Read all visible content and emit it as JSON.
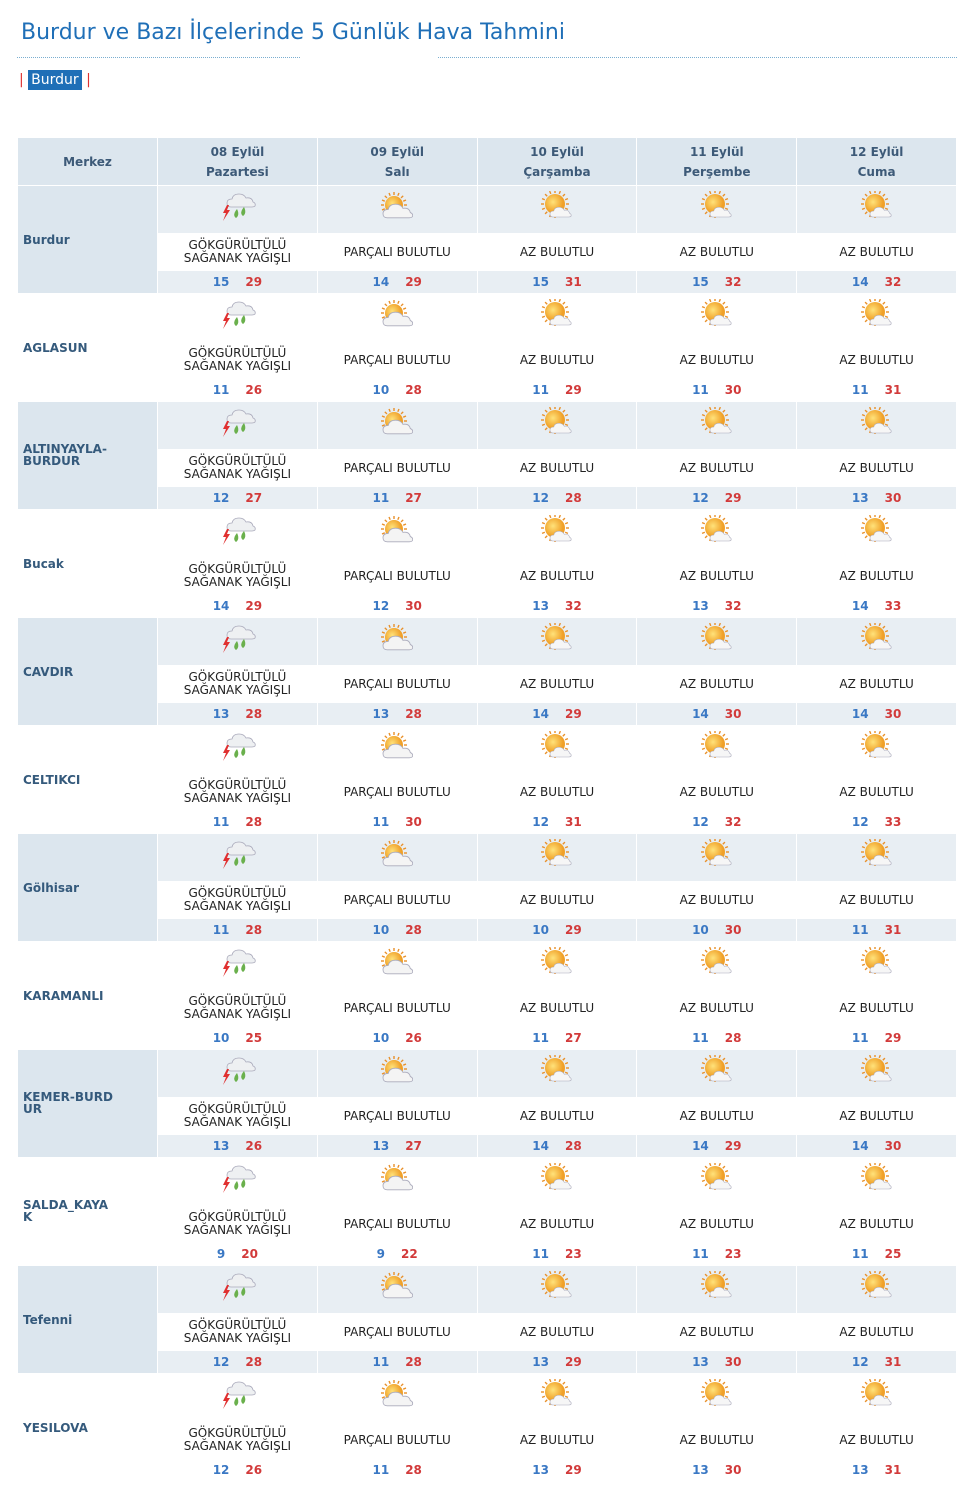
{
  "header": {
    "title": "Burdur ve Bazı İlçelerinde 5 Günlük Hava Tahmini",
    "tabs": [
      "Burdur"
    ]
  },
  "table": {
    "corner": "Merkez",
    "days": [
      {
        "date": "08 Eylül",
        "weekday": "Pazartesi"
      },
      {
        "date": "09 Eylül",
        "weekday": "Salı"
      },
      {
        "date": "10 Eylül",
        "weekday": "Çarşamba"
      },
      {
        "date": "11 Eylül",
        "weekday": "Perşembe"
      },
      {
        "date": "12 Eylül",
        "weekday": "Cuma"
      }
    ],
    "rows": [
      {
        "city": "Burdur",
        "days": [
          {
            "desc": "GÖKGÜRÜLTÜLÜ SAĞANAK YAĞIŞLI",
            "min": 15,
            "max": 29
          },
          {
            "desc": "PARÇALI BULUTLU",
            "min": 14,
            "max": 29
          },
          {
            "desc": "AZ BULUTLU",
            "min": 15,
            "max": 31
          },
          {
            "desc": "AZ BULUTLU",
            "min": 15,
            "max": 32
          },
          {
            "desc": "AZ BULUTLU",
            "min": 14,
            "max": 32
          }
        ]
      },
      {
        "city": "AGLASUN",
        "days": [
          {
            "desc": "GÖKGÜRÜLTÜLÜ SAĞANAK YAĞIŞLI",
            "min": 11,
            "max": 26
          },
          {
            "desc": "PARÇALI BULUTLU",
            "min": 10,
            "max": 28
          },
          {
            "desc": "AZ BULUTLU",
            "min": 11,
            "max": 29
          },
          {
            "desc": "AZ BULUTLU",
            "min": 11,
            "max": 30
          },
          {
            "desc": "AZ BULUTLU",
            "min": 11,
            "max": 31
          }
        ]
      },
      {
        "city": "ALTINYAYLA-BURDUR",
        "days": [
          {
            "desc": "GÖKGÜRÜLTÜLÜ SAĞANAK YAĞIŞLI",
            "min": 12,
            "max": 27
          },
          {
            "desc": "PARÇALI BULUTLU",
            "min": 11,
            "max": 27
          },
          {
            "desc": "AZ BULUTLU",
            "min": 12,
            "max": 28
          },
          {
            "desc": "AZ BULUTLU",
            "min": 12,
            "max": 29
          },
          {
            "desc": "AZ BULUTLU",
            "min": 13,
            "max": 30
          }
        ]
      },
      {
        "city": "Bucak",
        "days": [
          {
            "desc": "GÖKGÜRÜLTÜLÜ SAĞANAK YAĞIŞLI",
            "min": 14,
            "max": 29
          },
          {
            "desc": "PARÇALI BULUTLU",
            "min": 12,
            "max": 30
          },
          {
            "desc": "AZ BULUTLU",
            "min": 13,
            "max": 32
          },
          {
            "desc": "AZ BULUTLU",
            "min": 13,
            "max": 32
          },
          {
            "desc": "AZ BULUTLU",
            "min": 14,
            "max": 33
          }
        ]
      },
      {
        "city": "CAVDIR",
        "days": [
          {
            "desc": "GÖKGÜRÜLTÜLÜ SAĞANAK YAĞIŞLI",
            "min": 13,
            "max": 28
          },
          {
            "desc": "PARÇALI BULUTLU",
            "min": 13,
            "max": 28
          },
          {
            "desc": "AZ BULUTLU",
            "min": 14,
            "max": 29
          },
          {
            "desc": "AZ BULUTLU",
            "min": 14,
            "max": 30
          },
          {
            "desc": "AZ BULUTLU",
            "min": 14,
            "max": 30
          }
        ]
      },
      {
        "city": "CELTIKCI",
        "days": [
          {
            "desc": "GÖKGÜRÜLTÜLÜ SAĞANAK YAĞIŞLI",
            "min": 11,
            "max": 28
          },
          {
            "desc": "PARÇALI BULUTLU",
            "min": 11,
            "max": 30
          },
          {
            "desc": "AZ BULUTLU",
            "min": 12,
            "max": 31
          },
          {
            "desc": "AZ BULUTLU",
            "min": 12,
            "max": 32
          },
          {
            "desc": "AZ BULUTLU",
            "min": 12,
            "max": 33
          }
        ]
      },
      {
        "city": "Gölhisar",
        "days": [
          {
            "desc": "GÖKGÜRÜLTÜLÜ SAĞANAK YAĞIŞLI",
            "min": 11,
            "max": 28
          },
          {
            "desc": "PARÇALI BULUTLU",
            "min": 10,
            "max": 28
          },
          {
            "desc": "AZ BULUTLU",
            "min": 10,
            "max": 29
          },
          {
            "desc": "AZ BULUTLU",
            "min": 10,
            "max": 30
          },
          {
            "desc": "AZ BULUTLU",
            "min": 11,
            "max": 31
          }
        ]
      },
      {
        "city": "KARAMANLI",
        "days": [
          {
            "desc": "GÖKGÜRÜLTÜLÜ SAĞANAK YAĞIŞLI",
            "min": 10,
            "max": 25
          },
          {
            "desc": "PARÇALI BULUTLU",
            "min": 10,
            "max": 26
          },
          {
            "desc": "AZ BULUTLU",
            "min": 11,
            "max": 27
          },
          {
            "desc": "AZ BULUTLU",
            "min": 11,
            "max": 28
          },
          {
            "desc": "AZ BULUTLU",
            "min": 11,
            "max": 29
          }
        ]
      },
      {
        "city": "KEMER-BURDUR",
        "days": [
          {
            "desc": "GÖKGÜRÜLTÜLÜ SAĞANAK YAĞIŞLI",
            "min": 13,
            "max": 26
          },
          {
            "desc": "PARÇALI BULUTLU",
            "min": 13,
            "max": 27
          },
          {
            "desc": "AZ BULUTLU",
            "min": 14,
            "max": 28
          },
          {
            "desc": "AZ BULUTLU",
            "min": 14,
            "max": 29
          },
          {
            "desc": "AZ BULUTLU",
            "min": 14,
            "max": 30
          }
        ]
      },
      {
        "city": "SALDA_KAYAK",
        "days": [
          {
            "desc": "GÖKGÜRÜLTÜLÜ SAĞANAK YAĞIŞLI",
            "min": 9,
            "max": 20
          },
          {
            "desc": "PARÇALI BULUTLU",
            "min": 9,
            "max": 22
          },
          {
            "desc": "AZ BULUTLU",
            "min": 11,
            "max": 23
          },
          {
            "desc": "AZ BULUTLU",
            "min": 11,
            "max": 23
          },
          {
            "desc": "AZ BULUTLU",
            "min": 11,
            "max": 25
          }
        ]
      },
      {
        "city": "Tefenni",
        "days": [
          {
            "desc": "GÖKGÜRÜLTÜLÜ SAĞANAK YAĞIŞLI",
            "min": 12,
            "max": 28
          },
          {
            "desc": "PARÇALI BULUTLU",
            "min": 11,
            "max": 28
          },
          {
            "desc": "AZ BULUTLU",
            "min": 13,
            "max": 29
          },
          {
            "desc": "AZ BULUTLU",
            "min": 13,
            "max": 30
          },
          {
            "desc": "AZ BULUTLU",
            "min": 12,
            "max": 31
          }
        ]
      },
      {
        "city": "YESILOVA",
        "days": [
          {
            "desc": "GÖKGÜRÜLTÜLÜ SAĞANAK YAĞIŞLI",
            "min": 12,
            "max": 26
          },
          {
            "desc": "PARÇALI BULUTLU",
            "min": 11,
            "max": 28
          },
          {
            "desc": "AZ BULUTLU",
            "min": 13,
            "max": 29
          },
          {
            "desc": "AZ BULUTLU",
            "min": 13,
            "max": 30
          },
          {
            "desc": "AZ BULUTLU",
            "min": 13,
            "max": 31
          }
        ]
      }
    ]
  }
}
